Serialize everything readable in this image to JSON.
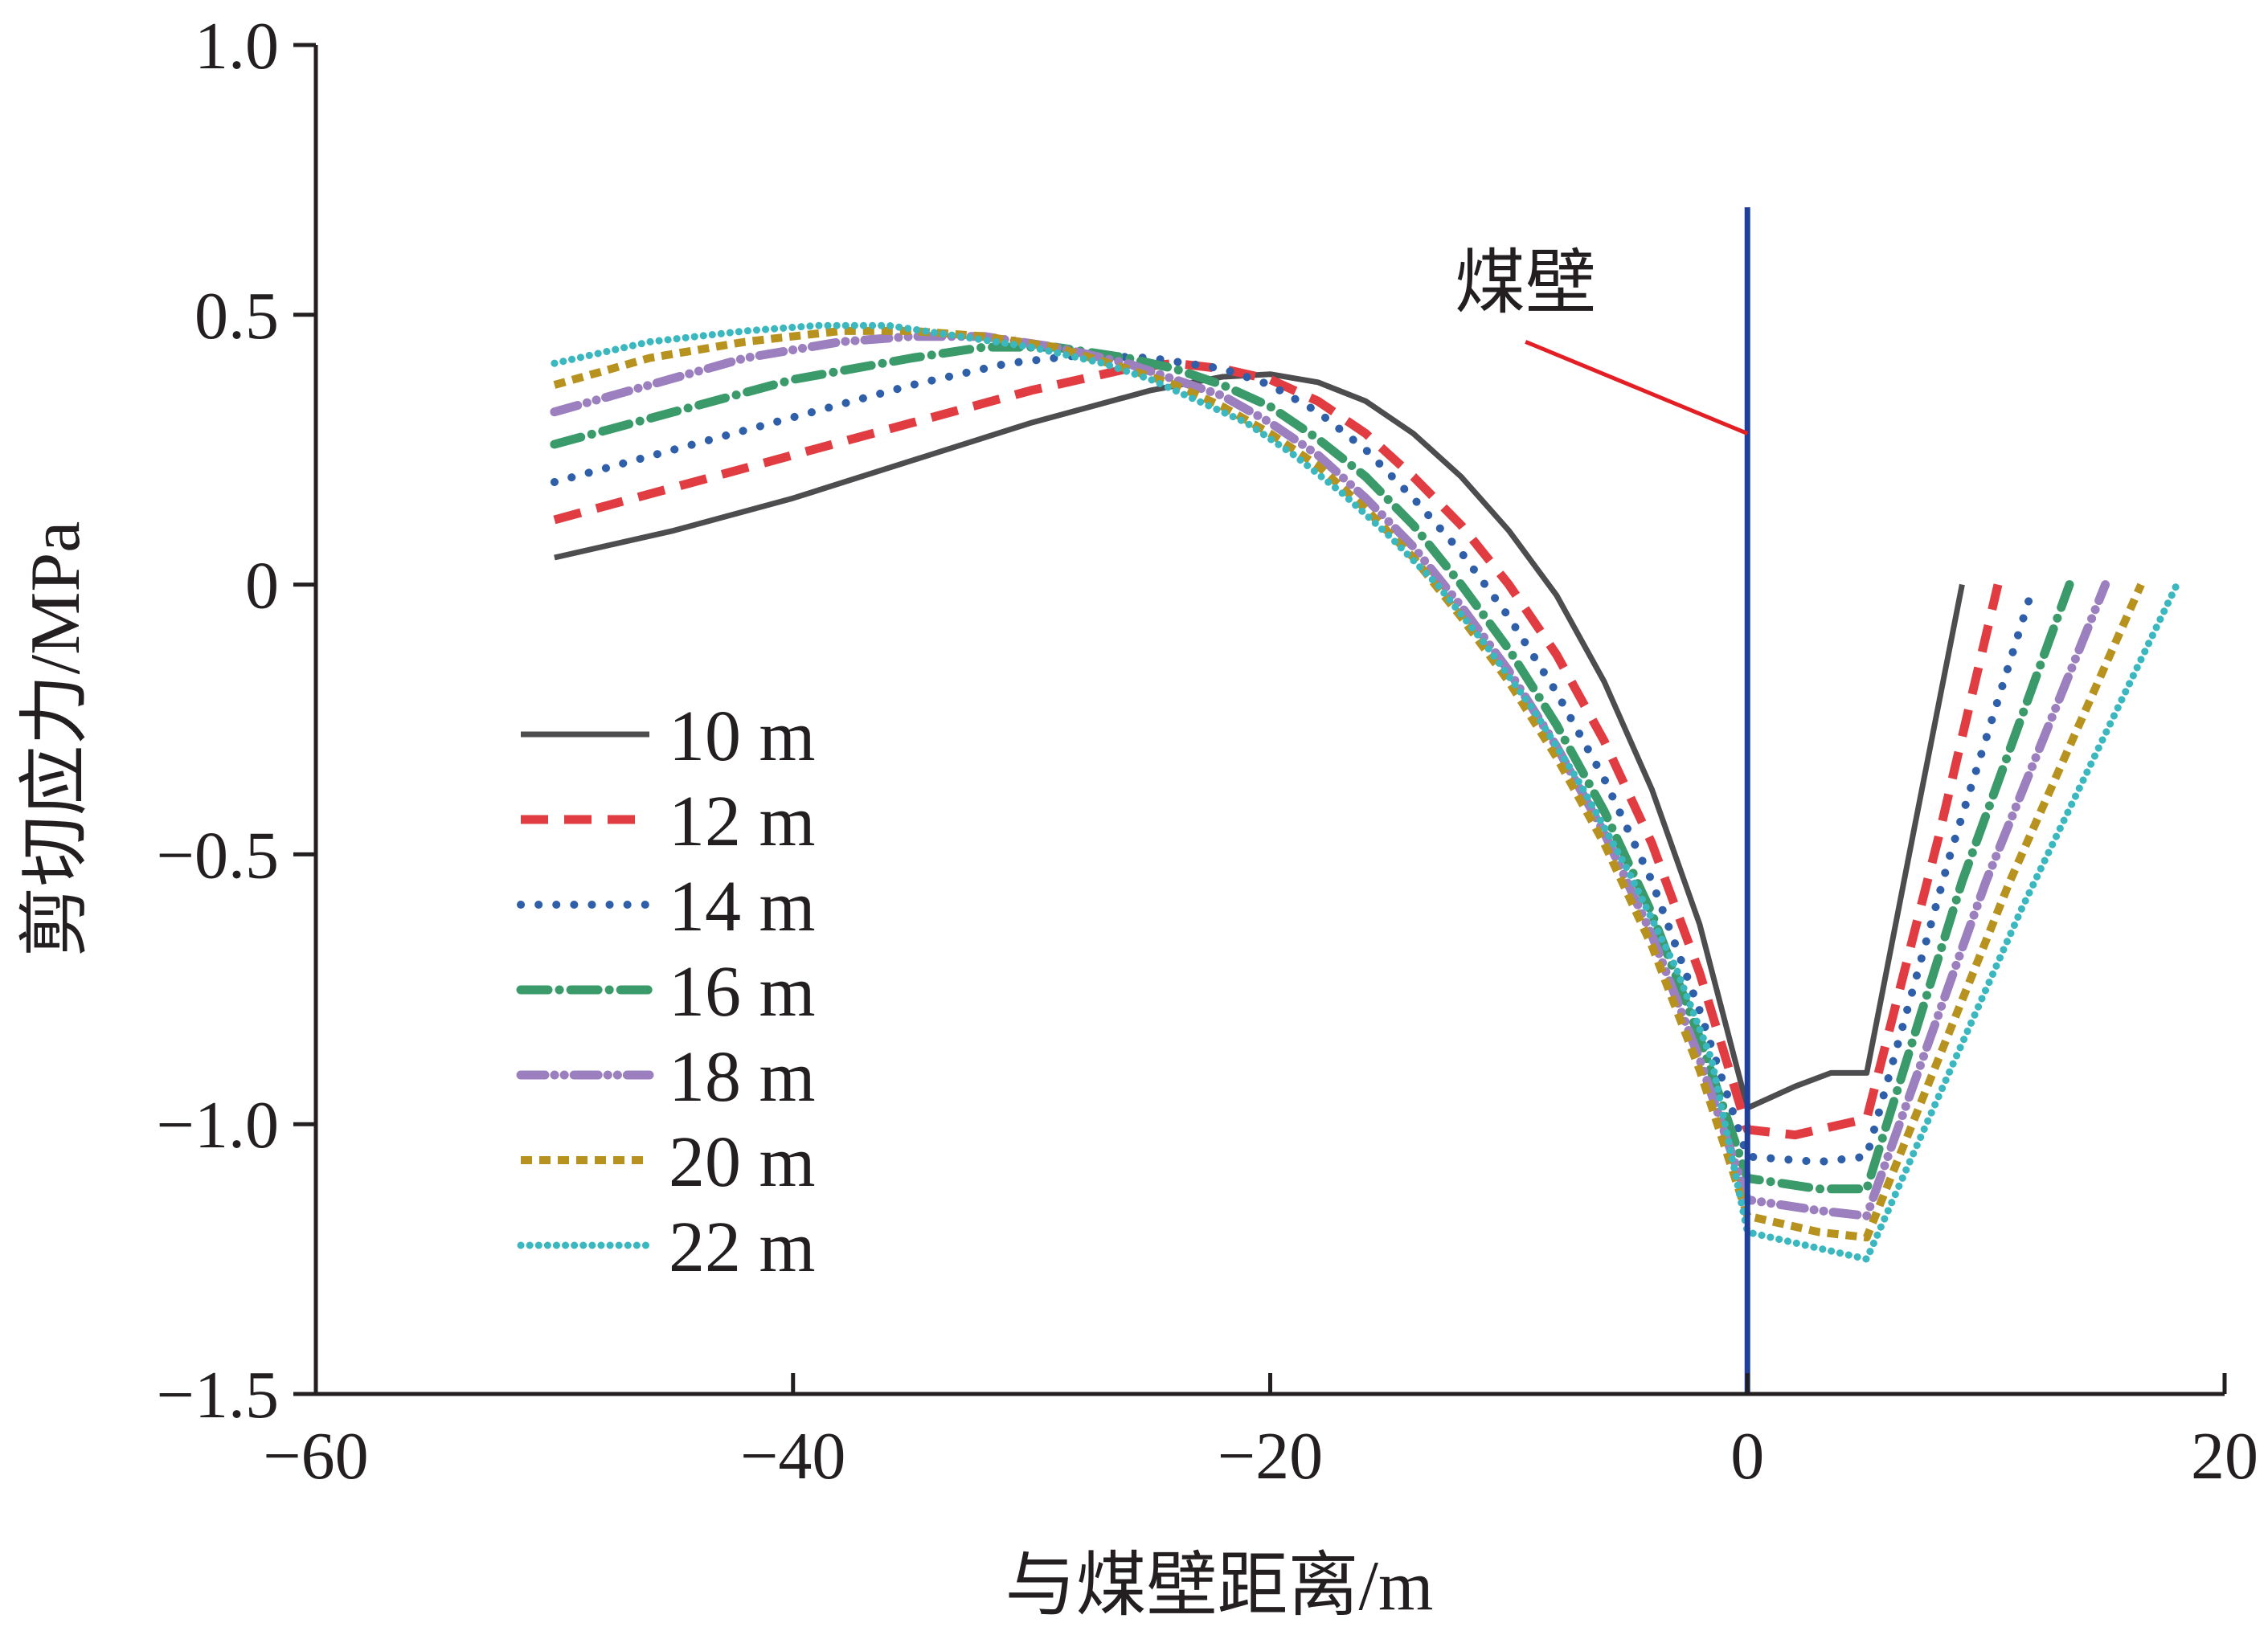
{
  "chart_data": {
    "type": "line",
    "title": "",
    "xlabel": "与煤壁距离/m",
    "ylabel": "剪切应力/MPa",
    "xlim": [
      -60,
      20
    ],
    "ylim": [
      -1.5,
      1.0
    ],
    "xticks": [
      -60,
      -40,
      -20,
      0,
      20
    ],
    "xtick_labels": [
      "−60",
      "−40",
      "−20",
      "0",
      "20"
    ],
    "yticks": [
      1.0,
      0.5,
      0,
      -0.5,
      -1.0,
      -1.5
    ],
    "ytick_labels": [
      "1.0",
      "0.5",
      "0",
      "−0.5",
      "−1.0",
      "−1.5"
    ],
    "grid": false,
    "legend_position": "left",
    "annotation": {
      "text": "煤壁",
      "vline_x": 0,
      "vline_color": "#1f3f99",
      "pointer_color": "#e31e24",
      "pointer_target": [
        0,
        0.28
      ],
      "pointer_from": [
        -9.3,
        0.45
      ]
    },
    "series": [
      {
        "name": "10 m",
        "color": "#4d4d4f",
        "style": "solid",
        "points": [
          [
            -50,
            0.05
          ],
          [
            -45,
            0.1
          ],
          [
            -40,
            0.16
          ],
          [
            -35,
            0.23
          ],
          [
            -30,
            0.3
          ],
          [
            -25,
            0.36
          ],
          [
            -22,
            0.385
          ],
          [
            -20,
            0.39
          ],
          [
            -18,
            0.375
          ],
          [
            -16,
            0.34
          ],
          [
            -14,
            0.28
          ],
          [
            -12,
            0.2
          ],
          [
            -10,
            0.1
          ],
          [
            -8,
            -0.02
          ],
          [
            -6,
            -0.18
          ],
          [
            -4,
            -0.38
          ],
          [
            -2,
            -0.63
          ],
          [
            0,
            -0.97
          ],
          [
            2,
            -0.93
          ],
          [
            3.5,
            -0.905
          ],
          [
            5,
            -0.905
          ],
          [
            7,
            -0.45
          ],
          [
            9,
            0.0
          ]
        ]
      },
      {
        "name": "12 m",
        "color": "#e03c41",
        "style": "dashed",
        "points": [
          [
            -50,
            0.12
          ],
          [
            -45,
            0.18
          ],
          [
            -40,
            0.24
          ],
          [
            -35,
            0.3
          ],
          [
            -30,
            0.36
          ],
          [
            -26,
            0.4
          ],
          [
            -24,
            0.41
          ],
          [
            -22,
            0.4
          ],
          [
            -20,
            0.38
          ],
          [
            -18,
            0.34
          ],
          [
            -16,
            0.28
          ],
          [
            -14,
            0.2
          ],
          [
            -12,
            0.11
          ],
          [
            -10,
            0.0
          ],
          [
            -8,
            -0.13
          ],
          [
            -6,
            -0.29
          ],
          [
            -4,
            -0.48
          ],
          [
            -2,
            -0.72
          ],
          [
            0,
            -1.01
          ],
          [
            2,
            -1.02
          ],
          [
            5,
            -0.99
          ],
          [
            8,
            -0.47
          ],
          [
            10.5,
            0.0
          ]
        ]
      },
      {
        "name": "14 m",
        "color": "#2e5fa8",
        "style": "dotted",
        "points": [
          [
            -50,
            0.19
          ],
          [
            -45,
            0.25
          ],
          [
            -40,
            0.31
          ],
          [
            -35,
            0.37
          ],
          [
            -31,
            0.41
          ],
          [
            -28,
            0.425
          ],
          [
            -25,
            0.42
          ],
          [
            -22,
            0.4
          ],
          [
            -20,
            0.37
          ],
          [
            -18,
            0.32
          ],
          [
            -16,
            0.25
          ],
          [
            -14,
            0.16
          ],
          [
            -12,
            0.06
          ],
          [
            -10,
            -0.06
          ],
          [
            -8,
            -0.2
          ],
          [
            -6,
            -0.36
          ],
          [
            -4,
            -0.55
          ],
          [
            -2,
            -0.79
          ],
          [
            0,
            -1.06
          ],
          [
            3,
            -1.07
          ],
          [
            5,
            -1.06
          ],
          [
            8.5,
            -0.5
          ],
          [
            12,
            0.0
          ]
        ]
      },
      {
        "name": "16 m",
        "color": "#3a9a6a",
        "style": "dashdot",
        "points": [
          [
            -50,
            0.26
          ],
          [
            -45,
            0.32
          ],
          [
            -40,
            0.38
          ],
          [
            -35,
            0.42
          ],
          [
            -32,
            0.44
          ],
          [
            -29,
            0.44
          ],
          [
            -26,
            0.42
          ],
          [
            -24,
            0.4
          ],
          [
            -22,
            0.37
          ],
          [
            -20,
            0.33
          ],
          [
            -18,
            0.27
          ],
          [
            -16,
            0.2
          ],
          [
            -14,
            0.11
          ],
          [
            -12,
            0.0
          ],
          [
            -10,
            -0.12
          ],
          [
            -8,
            -0.26
          ],
          [
            -6,
            -0.42
          ],
          [
            -4,
            -0.61
          ],
          [
            -2,
            -0.84
          ],
          [
            0,
            -1.1
          ],
          [
            3,
            -1.12
          ],
          [
            5,
            -1.12
          ],
          [
            9,
            -0.55
          ],
          [
            13.5,
            0.0
          ]
        ]
      },
      {
        "name": "18 m",
        "color": "#9b7fbe",
        "style": "dashdotdot",
        "points": [
          [
            -50,
            0.32
          ],
          [
            -46,
            0.37
          ],
          [
            -42,
            0.42
          ],
          [
            -38,
            0.45
          ],
          [
            -35,
            0.46
          ],
          [
            -32,
            0.46
          ],
          [
            -29,
            0.44
          ],
          [
            -26,
            0.41
          ],
          [
            -24,
            0.38
          ],
          [
            -22,
            0.35
          ],
          [
            -20,
            0.3
          ],
          [
            -18,
            0.24
          ],
          [
            -16,
            0.16
          ],
          [
            -14,
            0.07
          ],
          [
            -12,
            -0.04
          ],
          [
            -10,
            -0.16
          ],
          [
            -8,
            -0.3
          ],
          [
            -6,
            -0.46
          ],
          [
            -4,
            -0.65
          ],
          [
            -2,
            -0.88
          ],
          [
            0,
            -1.14
          ],
          [
            3,
            -1.16
          ],
          [
            5,
            -1.17
          ],
          [
            10,
            -0.55
          ],
          [
            15,
            0.0
          ]
        ]
      },
      {
        "name": "20 m",
        "color": "#b8921e",
        "style": "shortdash",
        "points": [
          [
            -50,
            0.37
          ],
          [
            -46,
            0.42
          ],
          [
            -42,
            0.45
          ],
          [
            -38,
            0.47
          ],
          [
            -35,
            0.47
          ],
          [
            -32,
            0.46
          ],
          [
            -29,
            0.44
          ],
          [
            -26,
            0.4
          ],
          [
            -24,
            0.37
          ],
          [
            -22,
            0.33
          ],
          [
            -20,
            0.28
          ],
          [
            -18,
            0.22
          ],
          [
            -16,
            0.14
          ],
          [
            -14,
            0.05
          ],
          [
            -12,
            -0.06
          ],
          [
            -10,
            -0.18
          ],
          [
            -8,
            -0.32
          ],
          [
            -6,
            -0.48
          ],
          [
            -4,
            -0.67
          ],
          [
            -2,
            -0.9
          ],
          [
            0,
            -1.17
          ],
          [
            3,
            -1.2
          ],
          [
            5,
            -1.21
          ],
          [
            11,
            -0.55
          ],
          [
            16.5,
            0.0
          ]
        ]
      },
      {
        "name": "22 m",
        "color": "#3ab7bf",
        "style": "densedot",
        "points": [
          [
            -50,
            0.41
          ],
          [
            -46,
            0.45
          ],
          [
            -42,
            0.47
          ],
          [
            -39,
            0.48
          ],
          [
            -36,
            0.48
          ],
          [
            -33,
            0.46
          ],
          [
            -30,
            0.44
          ],
          [
            -27,
            0.41
          ],
          [
            -25,
            0.38
          ],
          [
            -23,
            0.34
          ],
          [
            -21,
            0.3
          ],
          [
            -19,
            0.24
          ],
          [
            -17,
            0.17
          ],
          [
            -15,
            0.09
          ],
          [
            -13,
            0.0
          ],
          [
            -11,
            -0.11
          ],
          [
            -9,
            -0.23
          ],
          [
            -7,
            -0.37
          ],
          [
            -5,
            -0.53
          ],
          [
            -3,
            -0.71
          ],
          [
            -1.5,
            -0.88
          ],
          [
            0,
            -1.2
          ],
          [
            3,
            -1.23
          ],
          [
            5,
            -1.25
          ],
          [
            11.5,
            -0.6
          ],
          [
            18,
            0.0
          ]
        ]
      }
    ]
  }
}
